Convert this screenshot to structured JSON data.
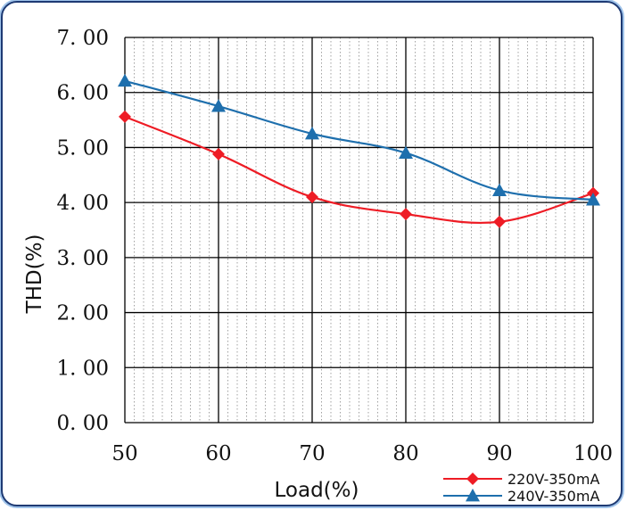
{
  "chart_data": {
    "type": "line",
    "xlabel": "Load(%)",
    "ylabel": "THD(%)",
    "x": [
      50,
      60,
      70,
      80,
      90,
      100
    ],
    "x_tick_labels": [
      "50",
      "60",
      "70",
      "80",
      "90",
      "100"
    ],
    "xlim": [
      50,
      100
    ],
    "ylim": [
      0,
      7
    ],
    "y_tick_labels": [
      "0. 00",
      "1. 00",
      "2. 00",
      "3. 00",
      "4. 00",
      "5. 00",
      "6. 00",
      "7. 00"
    ],
    "grid": true,
    "legend_position": "bottom-right",
    "series": [
      {
        "name": "220V-350mA",
        "color": "#ee1c25",
        "marker": "diamond",
        "values": [
          5.56,
          4.88,
          4.1,
          3.79,
          3.65,
          4.17
        ]
      },
      {
        "name": "240V-350mA",
        "color": "#1e6fad",
        "marker": "triangle",
        "values": [
          6.21,
          5.75,
          5.25,
          4.9,
          4.22,
          4.05
        ]
      }
    ]
  }
}
